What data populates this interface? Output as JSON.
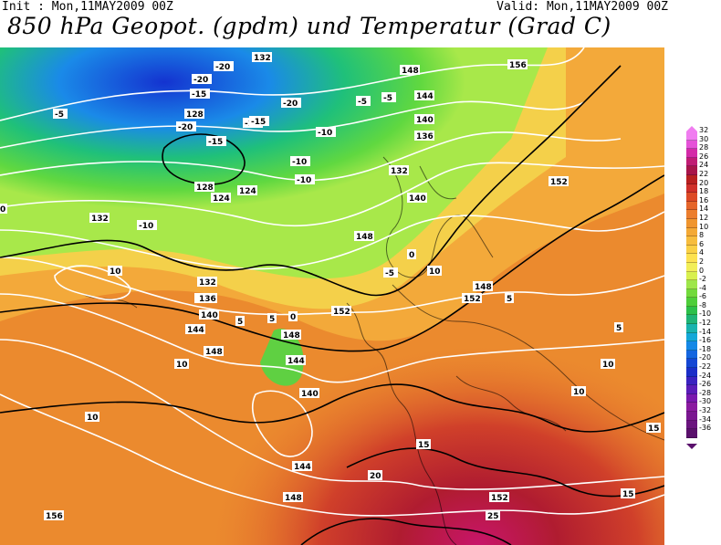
{
  "header": {
    "init": "Init : Mon,11MAY2009 00Z",
    "valid": "Valid: Mon,11MAY2009 00Z",
    "title": "850 hPa Geopot. (gpdm) und Temperatur (Grad C)"
  },
  "legend": {
    "values": [
      "32",
      "30",
      "28",
      "26",
      "24",
      "22",
      "20",
      "18",
      "16",
      "14",
      "12",
      "10",
      "8",
      "6",
      "4",
      "2",
      "0",
      "-2",
      "-4",
      "-6",
      "-8",
      "-10",
      "-12",
      "-14",
      "-16",
      "-18",
      "-20",
      "-22",
      "-24",
      "-26",
      "-28",
      "-30",
      "-32",
      "-34",
      "-36"
    ],
    "colors": [
      "#f07cf0",
      "#e552d8",
      "#d42aa8",
      "#c01c74",
      "#a8154a",
      "#b82020",
      "#d0302a",
      "#dd4a26",
      "#e5652a",
      "#ec7e2e",
      "#f0952e",
      "#f4a935",
      "#f7bd3d",
      "#fad045",
      "#fde250",
      "#f2ee58",
      "#d8f04e",
      "#9ee64a",
      "#72da3c",
      "#4ece3a",
      "#2cc04a",
      "#1fb476",
      "#19b3ae",
      "#14a8d8",
      "#1488e6",
      "#1466e0",
      "#1447d4",
      "#1a2ec8",
      "#3a22c0",
      "#5a1cb8",
      "#7a18ae",
      "#8a1aa0",
      "#7a1690",
      "#6a147e",
      "#5a106c"
    ]
  },
  "map_labels": {
    "geopotential": [
      "132",
      "128",
      "124",
      "148",
      "144",
      "140",
      "136",
      "152",
      "156",
      "144",
      "148",
      "140",
      "136",
      "132",
      "128",
      "124",
      "132",
      "148",
      "152",
      "144",
      "148",
      "140",
      "136",
      "132",
      "152",
      "144",
      "148",
      "156",
      "148",
      "152",
      "140"
    ],
    "temperature": [
      "-20",
      "-20",
      "-15",
      "-20",
      "-15",
      "-15",
      "-10",
      "-10",
      "-5",
      "-5",
      "-5",
      "0",
      "0",
      "0",
      "5",
      "5",
      "5",
      "10",
      "10",
      "10",
      "10",
      "15",
      "15",
      "20",
      "25",
      "-5",
      "-10",
      "-10",
      "-15",
      "-20",
      "10",
      "10",
      "15",
      "5"
    ]
  },
  "colors": {
    "background": "#ffffff",
    "isoline_geopotential": "#ffffff",
    "isoline_temperature": "#000000"
  }
}
